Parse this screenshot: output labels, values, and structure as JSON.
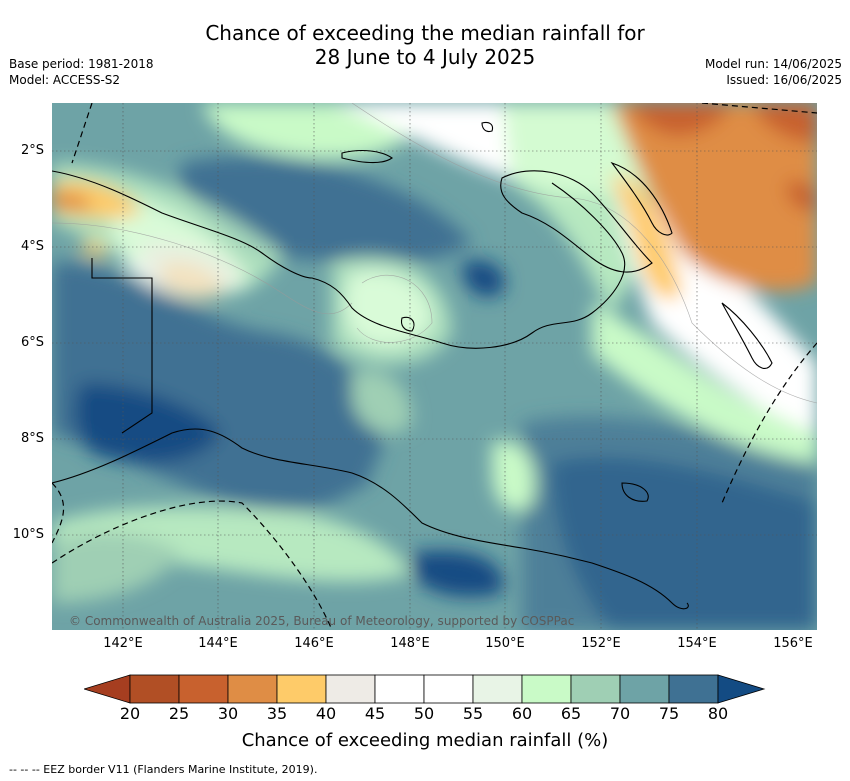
{
  "title": {
    "line1": "Chance of exceeding the median rainfall for",
    "line2": "28 June to 4 July 2025"
  },
  "meta": {
    "base_period": "Base period: 1981-2018",
    "model": "Model: ACCESS-S2",
    "model_run": "Model run: 14/06/2025",
    "issued": "Issued: 16/06/2025"
  },
  "map": {
    "credit": "© Commonwealth of Australia 2025, Bureau of Meteorology, supported by COSPPac",
    "lat_labels": [
      "2°S",
      "4°S",
      "6°S",
      "8°S",
      "10°S"
    ],
    "lon_labels": [
      "142°E",
      "144°E",
      "146°E",
      "148°E",
      "150°E",
      "152°E",
      "154°E",
      "156°E"
    ]
  },
  "colorbar": {
    "title": "Chance of exceeding median rainfall (%)",
    "tick_labels": [
      "20",
      "25",
      "30",
      "35",
      "40",
      "45",
      "50",
      "55",
      "60",
      "65",
      "70",
      "75",
      "80"
    ],
    "colors": [
      "#a63e20",
      "#b14f25",
      "#c8612e",
      "#df8d45",
      "#fecb69",
      "#eeebe6",
      "#ffffff",
      "#ffffff",
      "#e8f4e6",
      "#c9fac7",
      "#9fcfb4",
      "#6ea3a6",
      "#3f7193",
      "#134b83"
    ]
  },
  "legend_note": "-- -- -- EEZ border V11 (Flanders Marine Institute, 2019)."
}
